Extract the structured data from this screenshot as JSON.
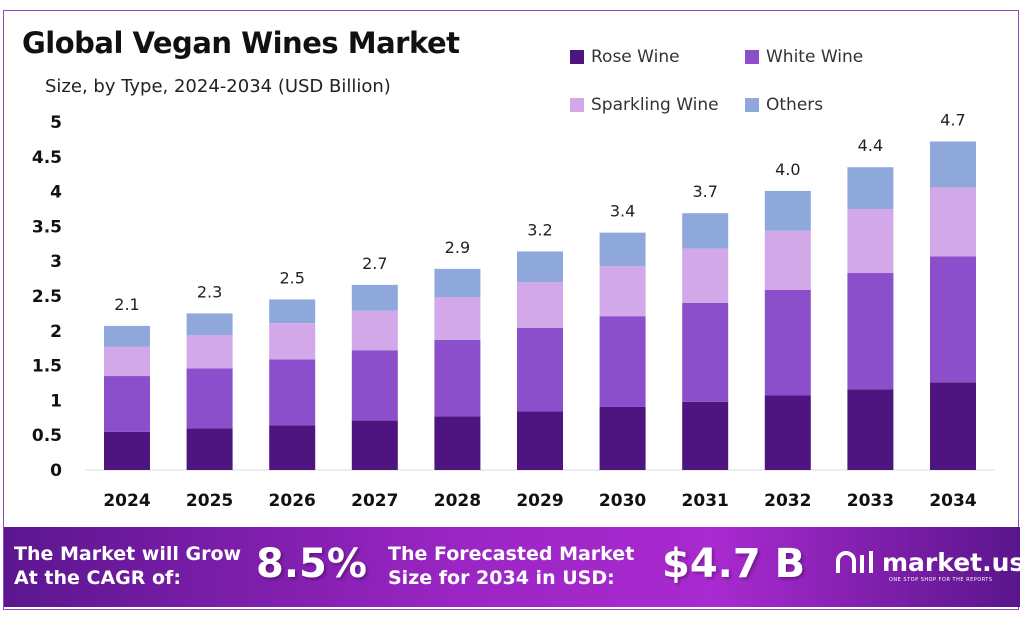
{
  "chart_data": {
    "type": "bar",
    "stacked": true,
    "title": "Global Vegan Wines Market",
    "subtitle": "Size, by Type, 2024-2034 (USD Billion)",
    "xlabel": "",
    "ylabel": "",
    "ylim": [
      0,
      5
    ],
    "yticks": [
      "0",
      "0.5",
      "1",
      "1.5",
      "2",
      "2.5",
      "3",
      "3.5",
      "4",
      "4.5",
      "5"
    ],
    "grid": false,
    "legend_position": "top-right",
    "categories": [
      "2024",
      "2025",
      "2026",
      "2027",
      "2028",
      "2029",
      "2030",
      "2031",
      "2032",
      "2033",
      "2034"
    ],
    "series": [
      {
        "name": "Rose Wine",
        "color": "#4e1580",
        "values": [
          0.55,
          0.6,
          0.64,
          0.71,
          0.77,
          0.84,
          0.91,
          0.98,
          1.07,
          1.16,
          1.26
        ]
      },
      {
        "name": "White Wine",
        "color": "#8b4fcc",
        "values": [
          0.8,
          0.86,
          0.95,
          1.01,
          1.1,
          1.2,
          1.3,
          1.42,
          1.52,
          1.67,
          1.81
        ]
      },
      {
        "name": "Sparkling Wine",
        "color": "#d3a8e8",
        "values": [
          0.42,
          0.48,
          0.52,
          0.57,
          0.61,
          0.66,
          0.72,
          0.78,
          0.85,
          0.92,
          0.99
        ]
      },
      {
        "name": "Others",
        "color": "#8ea8dc",
        "values": [
          0.3,
          0.31,
          0.34,
          0.37,
          0.41,
          0.44,
          0.48,
          0.51,
          0.57,
          0.6,
          0.66
        ]
      }
    ],
    "totals": [
      "2.1",
      "2.3",
      "2.5",
      "2.7",
      "2.9",
      "3.2",
      "3.4",
      "3.7",
      "4.0",
      "4.4",
      "4.7"
    ]
  },
  "footer": {
    "cagr_label_line1": "The Market will Grow",
    "cagr_label_line2": "At the CAGR of:",
    "cagr_value": "8.5%",
    "forecast_label_line1": "The Forecasted Market",
    "forecast_label_line2": "Size for 2034 in USD:",
    "forecast_value": "$4.7 B",
    "logo_text": "market.us",
    "logo_tagline": "ONE STOP SHOP FOR THE REPORTS"
  }
}
